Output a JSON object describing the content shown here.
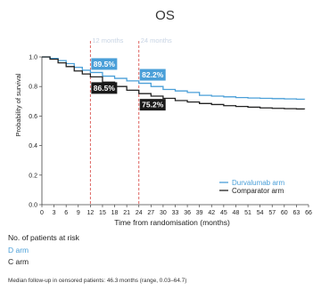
{
  "chart_data": {
    "type": "line",
    "title": "OS",
    "xlabel": "Time from randomisation (months)",
    "ylabel": "Probability of survival",
    "xlim": [
      0,
      66
    ],
    "ylim": [
      0,
      1.0
    ],
    "x_ticks": [
      0,
      3,
      6,
      9,
      12,
      15,
      18,
      21,
      24,
      27,
      30,
      33,
      36,
      39,
      42,
      45,
      48,
      51,
      54,
      57,
      60,
      63,
      66
    ],
    "x_tick_labels": [
      "0",
      "3",
      "6",
      "9",
      "12",
      "15",
      "18",
      "21",
      "24",
      "27",
      "30",
      "33",
      "36",
      "39",
      "42",
      "45",
      "48",
      "51",
      "54",
      "57",
      "60",
      "63",
      "66"
    ],
    "y_ticks": [
      0,
      0.2,
      0.4,
      0.6,
      0.8,
      1.0
    ],
    "y_tick_labels": [
      "0.0",
      "0.2",
      "0.4",
      "0.6",
      "0.8",
      "1.0"
    ],
    "grid": false,
    "legend_position": "bottom-right",
    "series": [
      {
        "name": "Durvalumab arm",
        "color": "#4a9fd8",
        "x": [
          0,
          2,
          4,
          6,
          8,
          10,
          12,
          15,
          18,
          21,
          24,
          27,
          30,
          33,
          36,
          39,
          42,
          45,
          48,
          51,
          54,
          57,
          60,
          63,
          65
        ],
        "y": [
          1.0,
          0.99,
          0.975,
          0.955,
          0.93,
          0.91,
          0.895,
          0.87,
          0.855,
          0.838,
          0.822,
          0.8,
          0.78,
          0.77,
          0.76,
          0.74,
          0.735,
          0.73,
          0.725,
          0.722,
          0.72,
          0.718,
          0.716,
          0.714,
          0.713
        ]
      },
      {
        "name": "Comparator arm",
        "color": "#222222",
        "x": [
          0,
          2,
          4,
          6,
          8,
          10,
          12,
          15,
          18,
          21,
          24,
          27,
          30,
          33,
          36,
          39,
          42,
          45,
          48,
          51,
          54,
          57,
          60,
          63,
          65
        ],
        "y": [
          1.0,
          0.985,
          0.96,
          0.935,
          0.905,
          0.885,
          0.865,
          0.83,
          0.8,
          0.775,
          0.752,
          0.735,
          0.72,
          0.705,
          0.695,
          0.685,
          0.678,
          0.67,
          0.665,
          0.66,
          0.655,
          0.652,
          0.65,
          0.648,
          0.647
        ]
      }
    ],
    "reference_lines": [
      {
        "x": 12,
        "label": "12 months"
      },
      {
        "x": 24,
        "label": "24 months"
      }
    ],
    "annotations": [
      {
        "text": "89.5%",
        "x": 12,
        "series": "Durvalumab arm"
      },
      {
        "text": "82.2%",
        "x": 24,
        "series": "Durvalumab arm"
      },
      {
        "text": "86.5%",
        "x": 12,
        "series": "Comparator arm"
      },
      {
        "text": "75.2%",
        "x": 24,
        "series": "Comparator arm"
      }
    ]
  },
  "risk_table": {
    "title": "No. of patients at risk",
    "rows": [
      {
        "label": "D arm",
        "color": "#4a9fd8"
      },
      {
        "label": "C arm",
        "color": "#222222"
      }
    ]
  },
  "footnote": "Median follow-up in censored patients: 46.3 months (range, 0.03–64.7)"
}
